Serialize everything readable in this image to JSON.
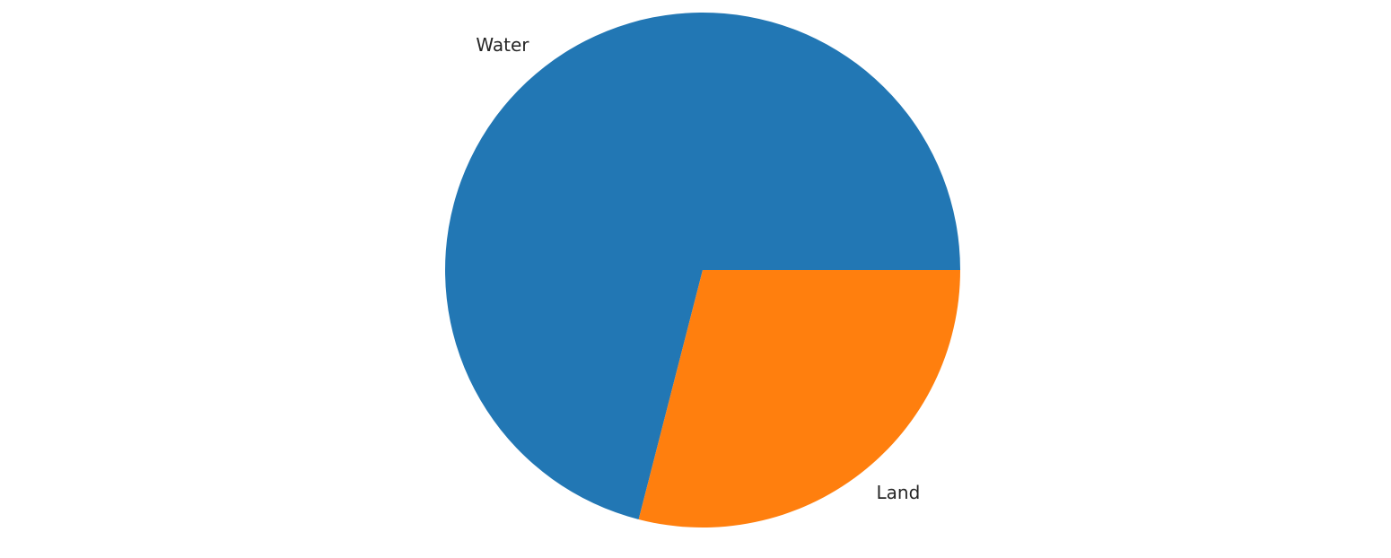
{
  "chart_data": {
    "type": "pie",
    "title": "",
    "start_angle_deg": 0,
    "direction": "counterclockwise",
    "slices": [
      {
        "label": "Water",
        "value": 71,
        "color": "#2277b4"
      },
      {
        "label": "Land",
        "value": 29,
        "color": "#ff7f0e"
      }
    ]
  }
}
